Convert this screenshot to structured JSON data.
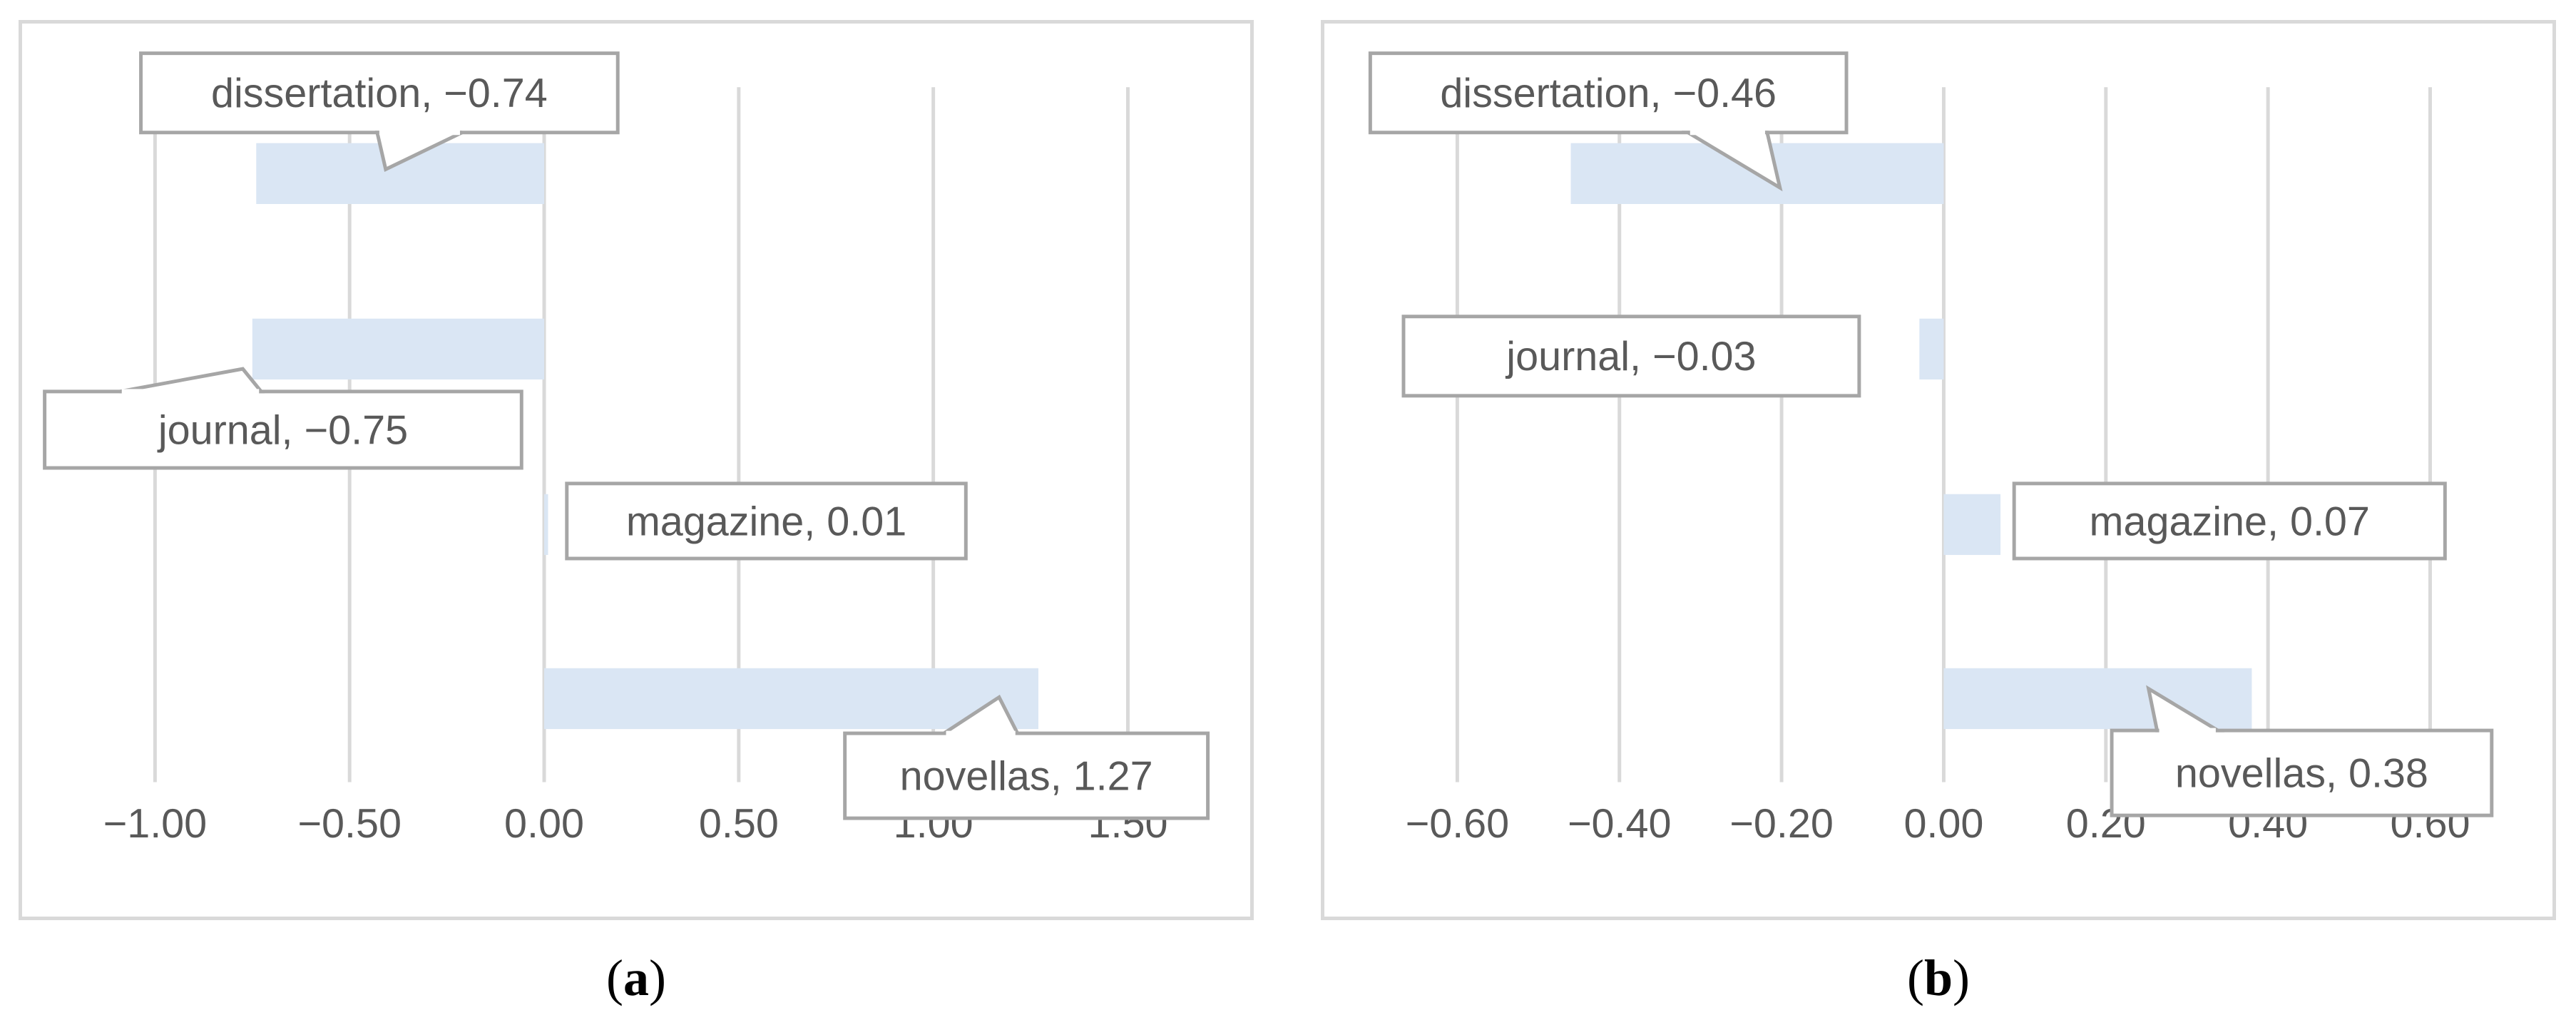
{
  "chart_data": [
    {
      "type": "bar",
      "orientation": "horizontal",
      "panel_label": "a",
      "categories": [
        "dissertation",
        "journal",
        "magazine",
        "novellas"
      ],
      "values": [
        -0.74,
        -0.75,
        0.01,
        1.27
      ],
      "data_labels": [
        "dissertation, −0.74",
        "journal, −0.75",
        "magazine, 0.01",
        "novellas, 1.27"
      ],
      "xlim": [
        -1.0,
        1.5
      ],
      "ticks": [
        -1.0,
        -0.5,
        0.0,
        0.5,
        1.0,
        1.5
      ],
      "tick_labels": [
        "−1.00",
        "−0.50",
        "0.00",
        "0.50",
        "1.00",
        "1.50"
      ],
      "grid": true,
      "legend": "none",
      "bar_color": "#dae6f4"
    },
    {
      "type": "bar",
      "orientation": "horizontal",
      "panel_label": "b",
      "categories": [
        "dissertation",
        "journal",
        "magazine",
        "novellas"
      ],
      "values": [
        -0.46,
        -0.03,
        0.07,
        0.38
      ],
      "data_labels": [
        "dissertation, −0.46",
        "journal, −0.03",
        "magazine, 0.07",
        "novellas, 0.38"
      ],
      "xlim": [
        -0.6,
        0.6
      ],
      "ticks": [
        -0.6,
        -0.4,
        -0.2,
        0.0,
        0.2,
        0.4,
        0.6
      ],
      "tick_labels": [
        "−0.60",
        "−0.40",
        "−0.20",
        "0.00",
        "0.20",
        "0.40",
        "0.60"
      ],
      "grid": true,
      "legend": "none",
      "bar_color": "#dae6f4"
    }
  ],
  "captions": [
    "a",
    "b"
  ],
  "colors": {
    "grid": "#d9d9d9",
    "label_border": "#a6a6a6",
    "text": "#595959",
    "bar": "#dae6f4"
  }
}
